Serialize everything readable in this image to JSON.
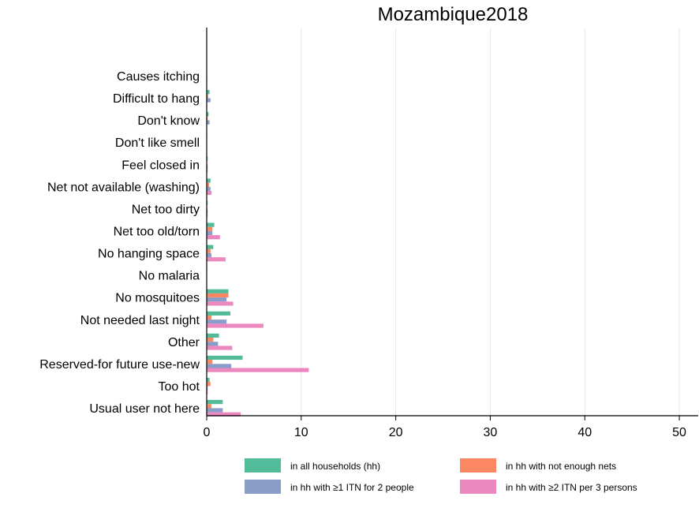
{
  "chart_data": {
    "type": "bar",
    "orientation": "horizontal",
    "title": "Mozambique2018",
    "xlabel": "",
    "ylabel": "",
    "xlim": [
      0,
      52
    ],
    "xticks": [
      0,
      10,
      20,
      30,
      40,
      50
    ],
    "grid": "vertical",
    "legend_position": "bottom",
    "categories": [
      "Causes itching",
      "Difficult to hang",
      "Don't know",
      "Don't like smell",
      "Feel closed in",
      "Net not available (washing)",
      "Net too dirty",
      "Net too old/torn",
      "No hanging space",
      "No malaria",
      "No mosquitoes",
      "Not needed last night",
      "Other",
      "Reserved-for future use-new",
      "Too hot",
      "Usual user not here"
    ],
    "series": [
      {
        "name": "in all households (hh)",
        "color": "#52bc9a",
        "values": [
          0.05,
          0.3,
          0.2,
          0.05,
          0.1,
          0.4,
          0.1,
          0.8,
          0.7,
          0.05,
          2.3,
          2.5,
          1.3,
          3.8,
          0.3,
          1.7
        ]
      },
      {
        "name": "in hh with not enough nets",
        "color": "#fb8862",
        "values": [
          0.02,
          0.15,
          0.1,
          0.03,
          0.05,
          0.25,
          0.05,
          0.6,
          0.4,
          0.02,
          2.3,
          0.5,
          0.7,
          0.6,
          0.4,
          0.5
        ]
      },
      {
        "name": "in hh with ≥1 ITN for 2 people",
        "color": "#8a9dc8",
        "values": [
          0.05,
          0.4,
          0.3,
          0.05,
          0.1,
          0.4,
          0.1,
          0.6,
          0.5,
          0.05,
          2.1,
          2.1,
          1.2,
          2.6,
          0.1,
          1.7
        ]
      },
      {
        "name": "in hh with ≥2 ITN per 3 persons",
        "color": "#eb88bf",
        "values": [
          0.02,
          0.05,
          0.05,
          0.03,
          0.1,
          0.5,
          0.1,
          1.4,
          2.0,
          0.02,
          2.8,
          6.0,
          2.7,
          10.8,
          0.1,
          3.6
        ]
      }
    ]
  }
}
